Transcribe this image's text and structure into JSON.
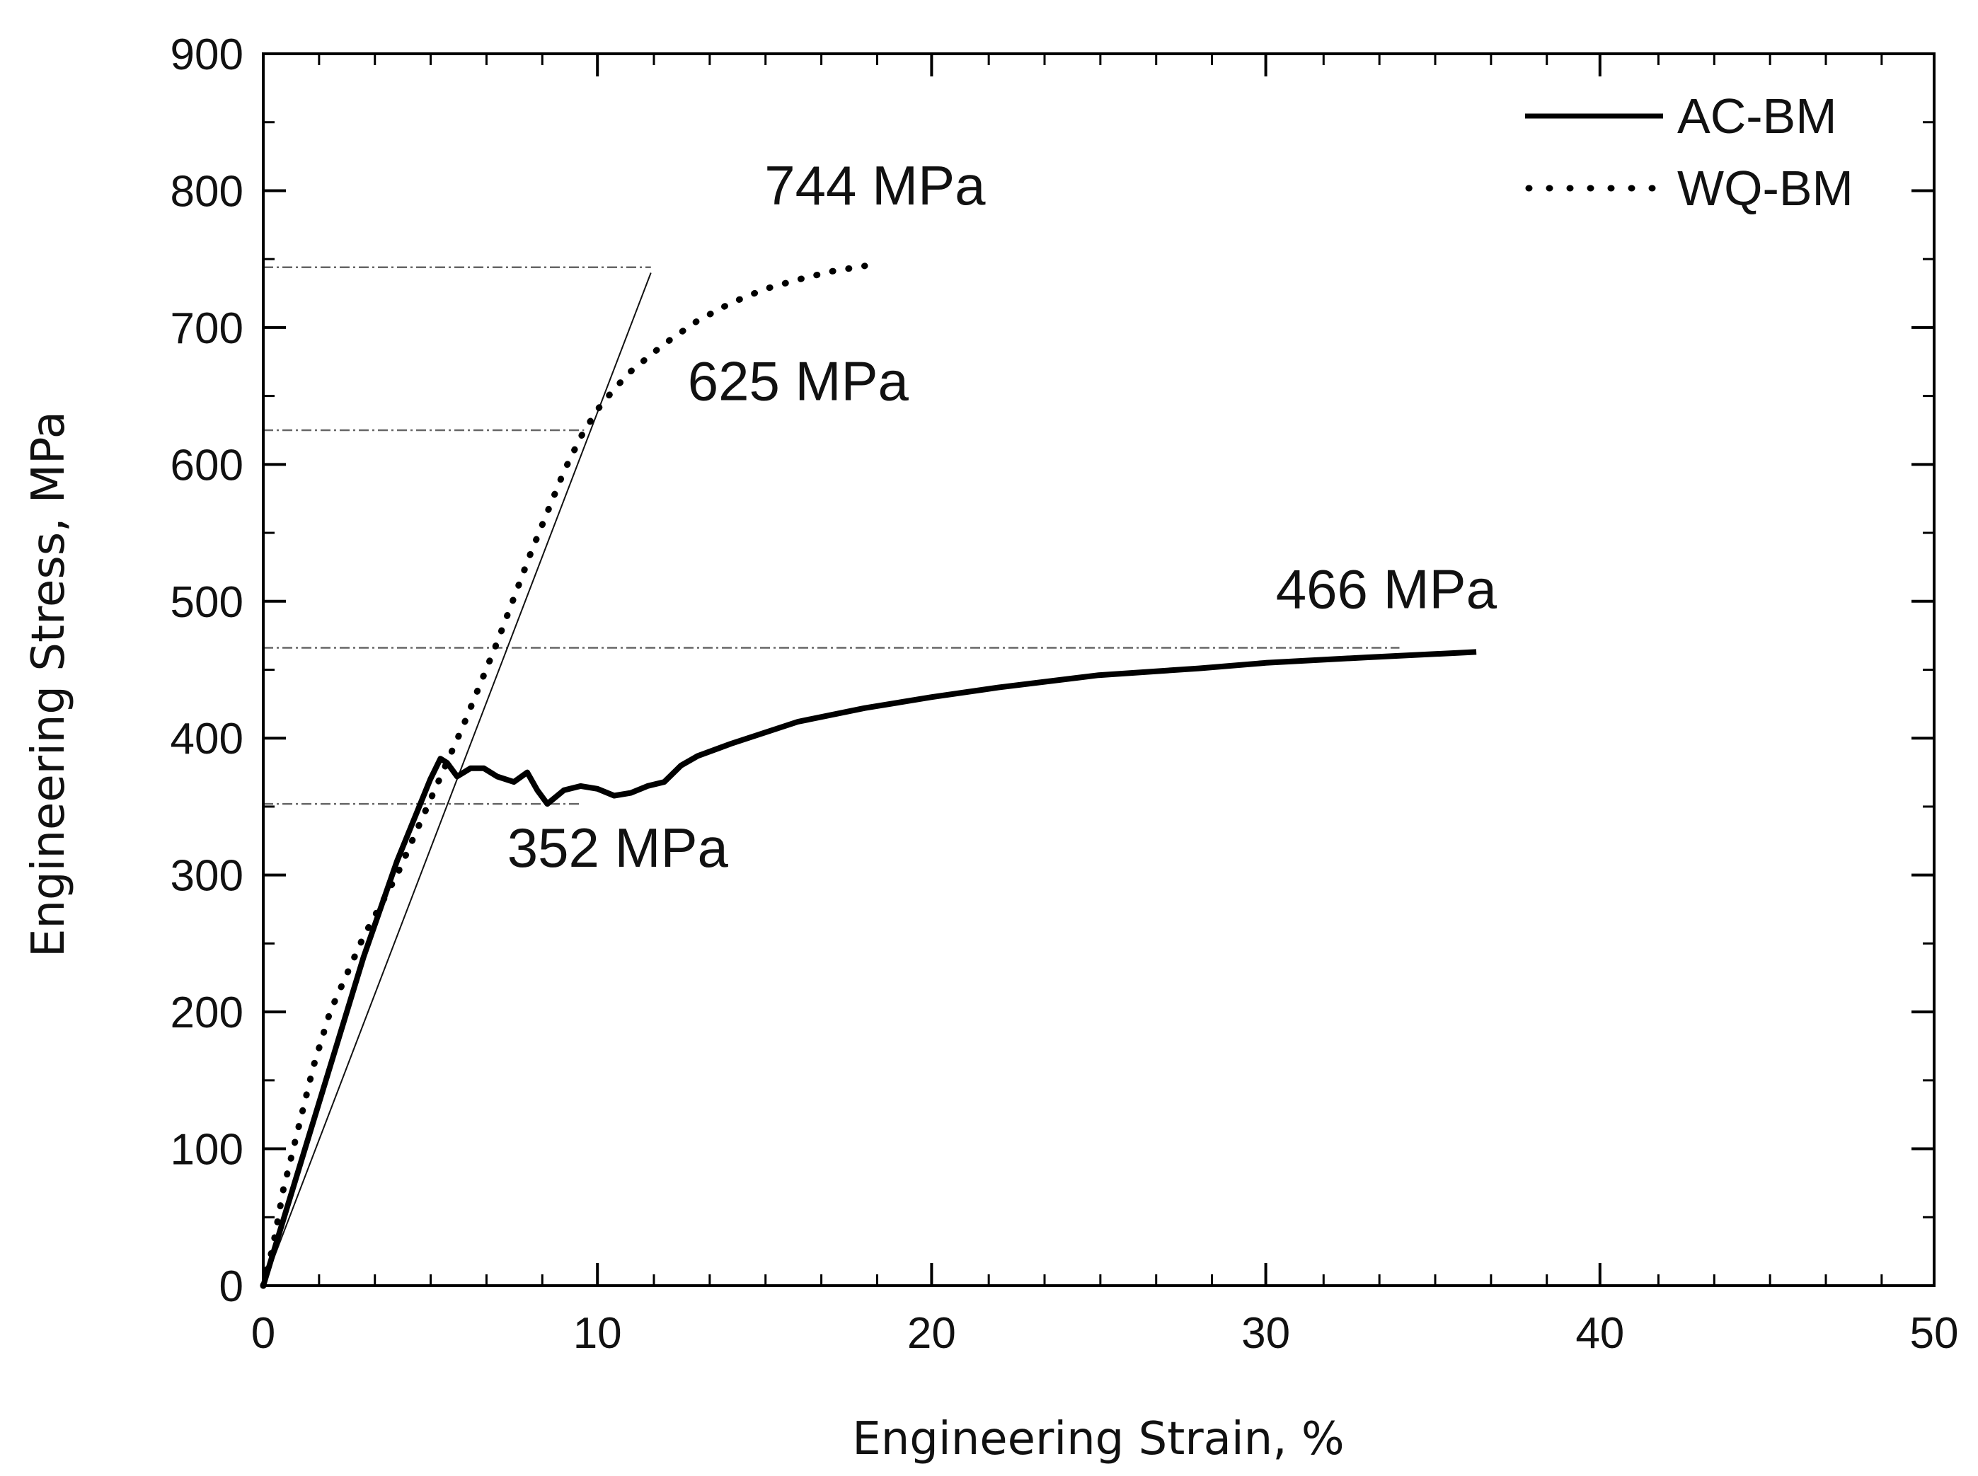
{
  "chart_data": {
    "type": "line",
    "title": "",
    "xlabel": "Engineering Strain, %",
    "ylabel": "Engineering Stress, MPa",
    "xlim": [
      0,
      50
    ],
    "ylim": [
      0,
      900
    ],
    "x_ticks": [
      0,
      10,
      20,
      30,
      40,
      50
    ],
    "y_ticks": [
      0,
      100,
      200,
      300,
      400,
      500,
      600,
      700,
      800,
      900
    ],
    "x_minor_step": 1.67,
    "y_minor_step": 50,
    "grid": false,
    "legend_position": "top-right",
    "series": [
      {
        "name": "AC-BM",
        "style": "solid",
        "x": [
          0,
          0.5,
          1,
          2,
          3,
          4,
          5,
          5.3,
          5.5,
          5.8,
          6.2,
          6.6,
          7,
          7.5,
          7.9,
          8.2,
          8.5,
          9,
          9.5,
          10,
          10.5,
          11,
          11.5,
          12,
          12.5,
          13,
          14,
          15,
          16,
          18,
          20,
          22,
          25,
          28,
          30,
          33,
          36.3
        ],
        "y": [
          0,
          40,
          80,
          160,
          240,
          310,
          370,
          385,
          382,
          372,
          378,
          378,
          372,
          368,
          375,
          362,
          352,
          362,
          365,
          363,
          358,
          360,
          365,
          368,
          380,
          387,
          396,
          404,
          412,
          422,
          430,
          437,
          446,
          451,
          455,
          459,
          463
        ]
      },
      {
        "name": "WQ-BM",
        "style": "dotted",
        "x": [
          0,
          0.3,
          0.6,
          1,
          1.5,
          2,
          3,
          4,
          5,
          6,
          7,
          8,
          8.5,
          9,
          9.5,
          10,
          10.5,
          11,
          12,
          13,
          14,
          15,
          16,
          17,
          18
        ],
        "y": [
          0,
          30,
          70,
          110,
          160,
          200,
          255,
          300,
          355,
          410,
          470,
          535,
          565,
          595,
          620,
          640,
          655,
          668,
          688,
          705,
          718,
          728,
          735,
          741,
          745
        ]
      }
    ],
    "reference_lines": {
      "stress_levels": [
        352,
        466,
        625,
        744
      ],
      "tangent_line": {
        "x": [
          0,
          11.6
        ],
        "y": [
          0,
          740
        ]
      }
    },
    "annotations": [
      {
        "text": "744 MPa",
        "x": 15,
        "y": 790
      },
      {
        "text": "625 MPa",
        "x": 12.7,
        "y": 647
      },
      {
        "text": "466 MPa",
        "x": 30.3,
        "y": 495
      },
      {
        "text": "352 MPa",
        "x": 7.3,
        "y": 306
      }
    ]
  }
}
